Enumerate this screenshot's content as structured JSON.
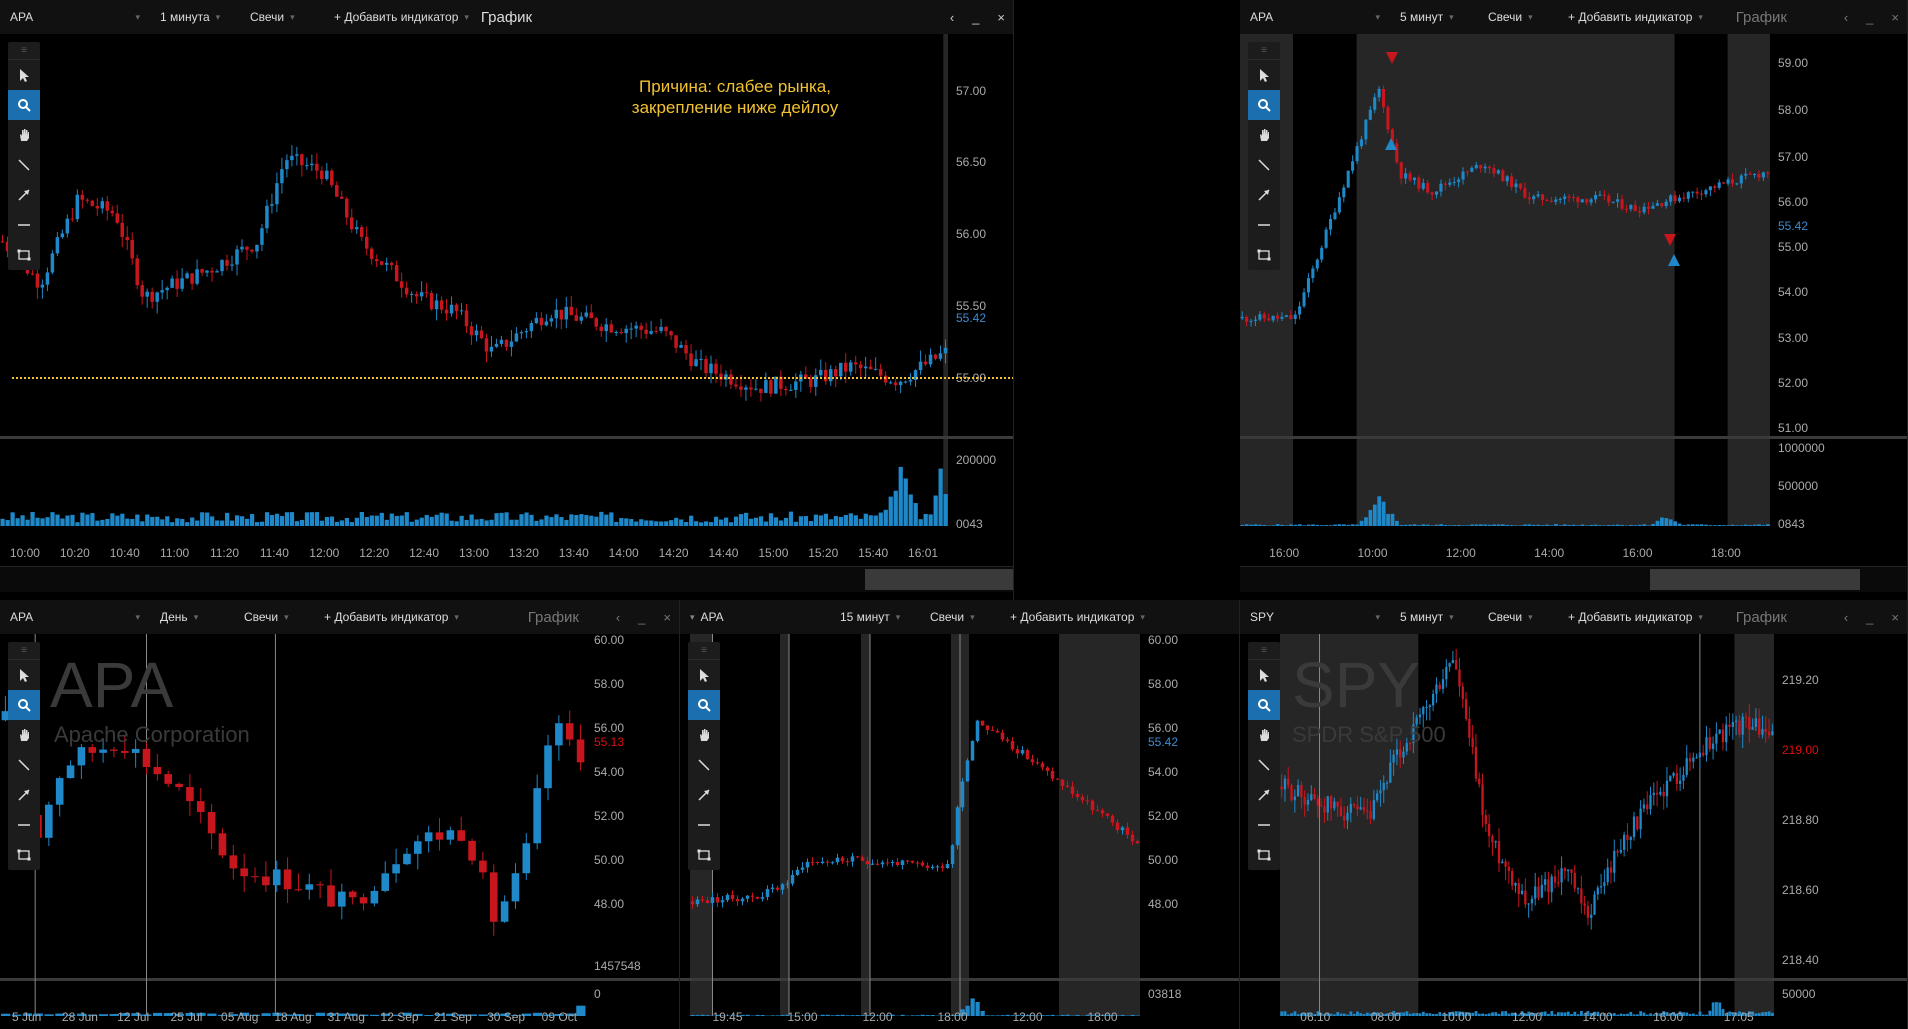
{
  "colors": {
    "up": "#1e88c8",
    "down": "#c8161e",
    "volume": "#1e88c8",
    "annotation": "#f2c232",
    "active_tool": "#1b6fae"
  },
  "tools": [
    "arrow-cursor-icon",
    "zoom-icon",
    "hand-icon",
    "line-icon",
    "arrow-line-icon",
    "horizontal-line-icon",
    "rectangle-icon"
  ],
  "panels": {
    "p1": {
      "ticker": "APA",
      "interval": "1 минута",
      "chart_type": "Свечи",
      "add_indicator": "+ Добавить индикатор",
      "title": "График",
      "controls": [
        "‹",
        "_",
        "×"
      ],
      "y_labels": [
        "57.00",
        "56.50",
        "56.00",
        "55.50",
        "55.42",
        "55.00"
      ],
      "vol_labels": [
        "200000",
        "0043"
      ],
      "x_labels": [
        "10:00",
        "10:20",
        "10:40",
        "11:00",
        "11:20",
        "11:40",
        "12:00",
        "12:20",
        "12:40",
        "13:00",
        "13:20",
        "13:40",
        "14:00",
        "14:20",
        "14:40",
        "15:00",
        "15:20",
        "15:40",
        "16:01"
      ],
      "annotation_line1": "Причина: слабее рынка,",
      "annotation_line2": "закрепление ниже дейлоу"
    },
    "p2": {
      "ticker": "APA",
      "interval": "5 минут",
      "chart_type": "Свечи",
      "add_indicator": "+ Добавить индикатор",
      "title": "График",
      "controls": [
        "‹",
        "_",
        "×"
      ],
      "y_labels": [
        "59.00",
        "58.00",
        "57.00",
        "56.00",
        "55.42",
        "55.00",
        "54.00",
        "53.00",
        "52.00",
        "51.00"
      ],
      "vol_labels": [
        "1000000",
        "500000",
        "0843"
      ],
      "x_labels": [
        "16:00",
        "10:00",
        "12:00",
        "14:00",
        "16:00",
        "18:00"
      ]
    },
    "p3": {
      "ticker": "APA",
      "interval": "День",
      "chart_type": "Свечи",
      "add_indicator": "+ Добавить индикатор",
      "title": "График",
      "controls": [
        "‹",
        "_",
        "×"
      ],
      "watermark": "APA",
      "watermark_sub": "Apache Corporation",
      "y_labels": [
        "60.00",
        "58.00",
        "56.00",
        "55.13",
        "54.00",
        "52.00",
        "50.00",
        "48.00",
        "1457548",
        "0"
      ],
      "x_labels": [
        "5 Jun",
        "28 Jun",
        "12 Jul",
        "25 Jul",
        "05 Aug",
        "18 Aug",
        "31 Aug",
        "12 Sep",
        "21 Sep",
        "30 Sep",
        "09 Oct"
      ]
    },
    "p4": {
      "ticker": "APA",
      "interval": "15 минут",
      "chart_type": "Свечи",
      "add_indicator": "+ Добавить индикатор",
      "y_labels": [
        "60.00",
        "58.00",
        "56.00",
        "55.42",
        "54.00",
        "52.00",
        "50.00",
        "48.00",
        "03818"
      ],
      "x_labels": [
        "19:45",
        "15:00",
        "12:00",
        "18:00",
        "12:00",
        "18:00"
      ]
    },
    "p5": {
      "ticker": "SPY",
      "interval": "5 минут",
      "chart_type": "Свечи",
      "add_indicator": "+ Добавить индикатор",
      "title": "График",
      "controls": [
        "‹",
        "_",
        "×"
      ],
      "watermark": "SPY",
      "watermark_sub": "SPDR S&P 500",
      "y_labels": [
        "219.20",
        "219.00",
        "218.80",
        "218.60",
        "218.40",
        "50000"
      ],
      "x_labels": [
        "06:10",
        "08:00",
        "10:00",
        "12:00",
        "14:00",
        "16:00",
        "17:05"
      ]
    }
  }
}
